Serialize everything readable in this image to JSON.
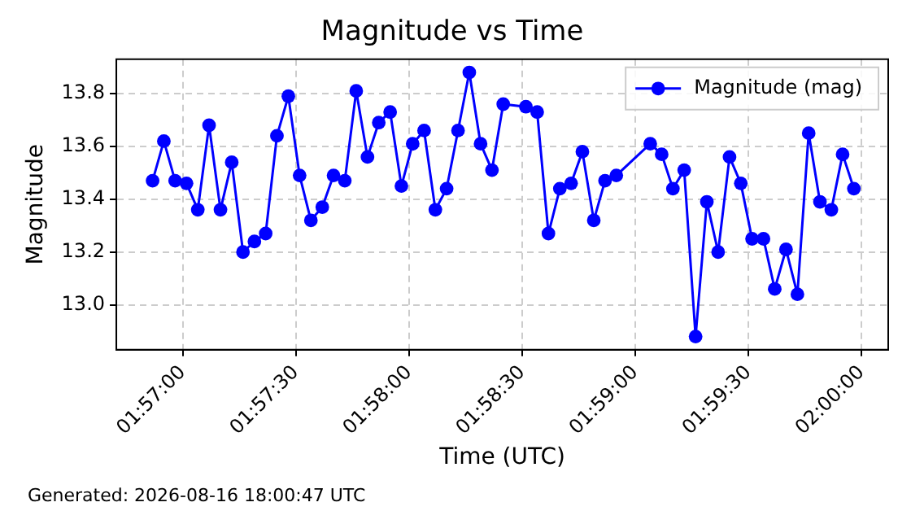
{
  "chart_data": {
    "type": "line",
    "title": "Magnitude vs Time",
    "xlabel": "Time (UTC)",
    "ylabel": "Magnitude",
    "annotations": [
      "Generated: 2026-08-16 18:00:47 UTC"
    ],
    "x": [
      1.94778,
      1.94861,
      1.94944,
      1.95028,
      1.95111,
      1.95194,
      1.95278,
      1.95361,
      1.95444,
      1.95528,
      1.95611,
      1.95694,
      1.95778,
      1.95861,
      1.95944,
      1.96028,
      1.96111,
      1.96194,
      1.96278,
      1.96361,
      1.96444,
      1.96528,
      1.96611,
      1.96694,
      1.96778,
      1.96861,
      1.96944,
      1.97028,
      1.97111,
      1.97194,
      1.97278,
      1.97361,
      1.97528,
      1.97611,
      1.97694,
      1.97778,
      1.97861,
      1.97944,
      1.98028,
      1.98111,
      1.98194,
      1.98444,
      1.98528,
      1.98611,
      1.98694,
      1.98778,
      1.98861,
      1.98944,
      1.99028,
      1.99111,
      1.99194,
      1.99278,
      1.99361,
      1.99444,
      1.99528,
      1.99611,
      1.99694,
      1.99778,
      1.99861,
      1.99944
    ],
    "series": [
      {
        "name": "Magnitude (mag)",
        "color": "#0000ff",
        "values": [
          13.47,
          13.62,
          13.47,
          13.46,
          13.36,
          13.68,
          13.36,
          13.54,
          13.2,
          13.24,
          13.27,
          13.64,
          13.79,
          13.49,
          13.32,
          13.37,
          13.49,
          13.47,
          13.81,
          13.56,
          13.69,
          13.73,
          13.45,
          13.61,
          13.66,
          13.36,
          13.44,
          13.66,
          13.88,
          13.61,
          13.51,
          13.76,
          13.75,
          13.73,
          13.27,
          13.44,
          13.46,
          13.58,
          13.32,
          13.47,
          13.49,
          13.61,
          13.57,
          13.44,
          13.51,
          12.88,
          13.39,
          13.2,
          13.56,
          13.46,
          13.25,
          13.25,
          13.06,
          13.21,
          13.04,
          13.65,
          13.39,
          13.36,
          13.57,
          13.44
        ]
      }
    ],
    "xlim": [
      1.94511,
      2.00197
    ],
    "xticks": [
      {
        "value": 1.95,
        "label": "01:57:00"
      },
      {
        "value": 1.958333,
        "label": "01:57:30"
      },
      {
        "value": 1.966667,
        "label": "01:58:00"
      },
      {
        "value": 1.975,
        "label": "01:58:30"
      },
      {
        "value": 1.983333,
        "label": "01:59:00"
      },
      {
        "value": 1.991667,
        "label": "01:59:30"
      },
      {
        "value": 2.0,
        "label": "02:00:00"
      }
    ],
    "ylim": [
      12.83,
      13.93
    ],
    "yticks": [
      {
        "value": 13.0,
        "label": "13.0"
      },
      {
        "value": 13.2,
        "label": "13.2"
      },
      {
        "value": 13.4,
        "label": "13.4"
      },
      {
        "value": 13.6,
        "label": "13.6"
      },
      {
        "value": 13.8,
        "label": "13.8"
      }
    ],
    "grid": true,
    "legend": "top right",
    "marker": "circle",
    "line_style": "solid"
  }
}
